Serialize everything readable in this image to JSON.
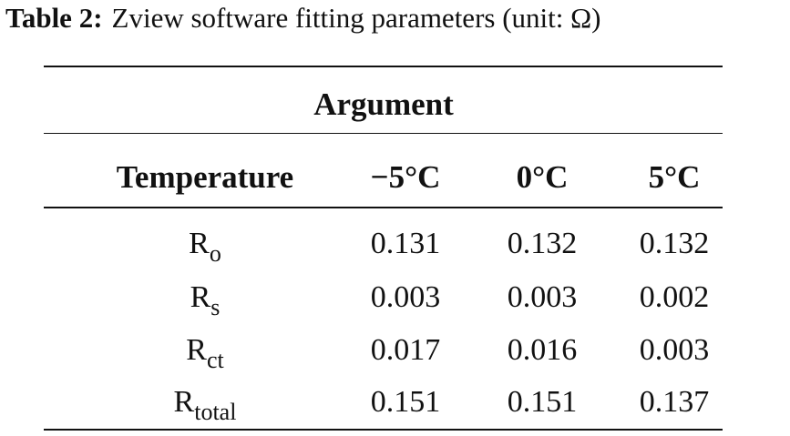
{
  "caption": {
    "label": "Table 2:",
    "text": "Zview software fitting parameters (unit: Ω)"
  },
  "table": {
    "group_header": "Argument",
    "header": [
      "Temperature",
      "−5°C",
      "0°C",
      "5°C"
    ],
    "rows": [
      [
        {
          "base": "R",
          "sub": "o"
        },
        "0.131",
        "0.132",
        "0.132"
      ],
      [
        {
          "base": "R",
          "sub": "s"
        },
        "0.003",
        "0.003",
        "0.002"
      ],
      [
        {
          "base": "R",
          "sub": "ct"
        },
        "0.017",
        "0.016",
        "0.003"
      ],
      [
        {
          "base": "R",
          "sub": "total"
        },
        "0.151",
        "0.151",
        "0.137"
      ]
    ]
  }
}
